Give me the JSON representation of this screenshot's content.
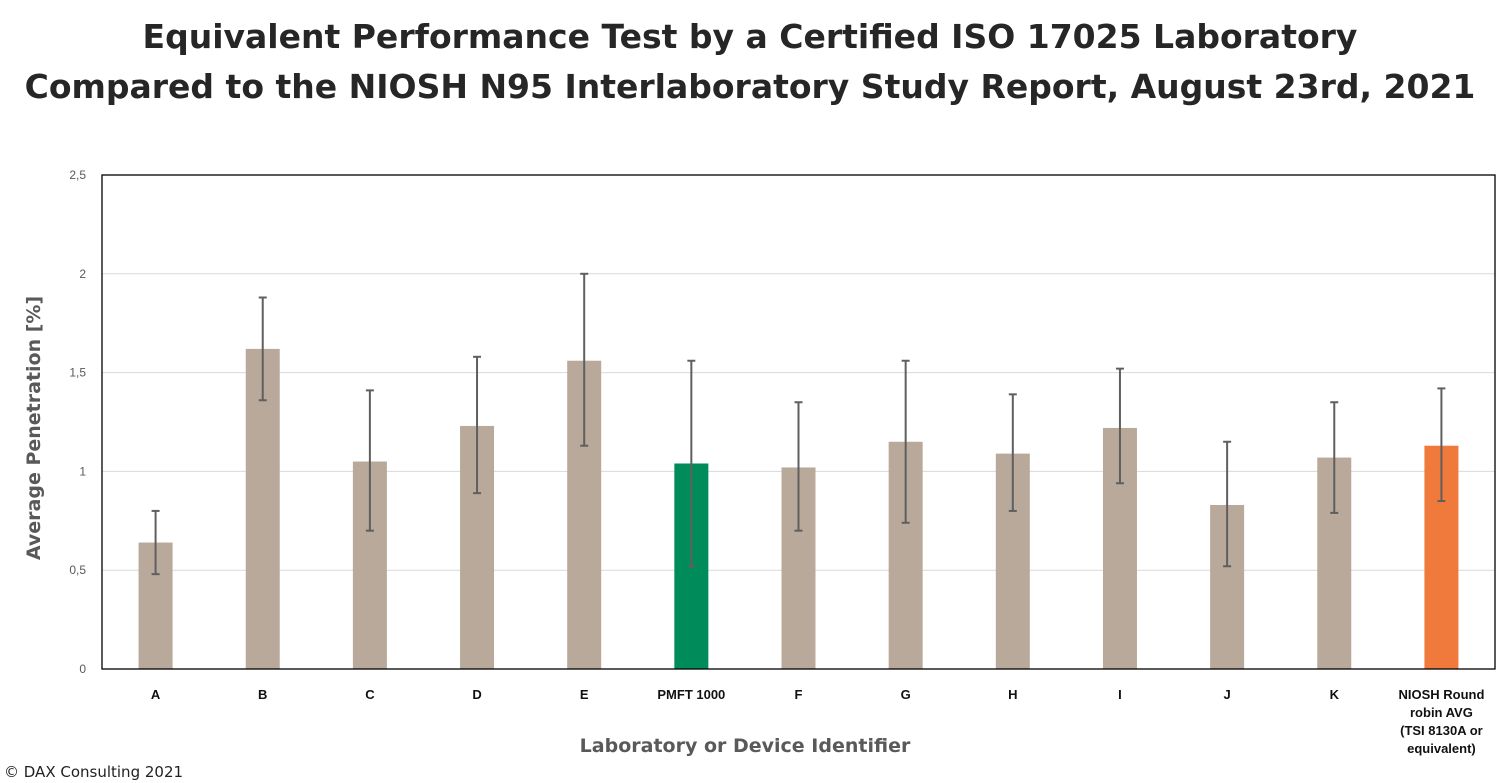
{
  "title_lines": [
    "Equivalent Performance Test by a Certified ISO 17025 Laboratory",
    "Compared to the NIOSH N95 Interlaboratory Study Report, August 23rd, 2021"
  ],
  "footer": {
    "copyright": "© DAX Consulting 2021"
  },
  "chart_data": {
    "type": "bar",
    "title": "Equivalent Performance Test by a Certified ISO 17025 Laboratory Compared to the NIOSH N95 Interlaboratory Study Report, August 23rd, 2021",
    "xlabel": "Laboratory or Device Identifier",
    "ylabel": "Average Penetration [%]",
    "ylim": [
      0,
      2.5
    ],
    "yticks": [
      0,
      0.5,
      1,
      1.5,
      2,
      2.5
    ],
    "ytick_labels": [
      "0",
      "0,5",
      "1",
      "1,5",
      "2",
      "2,5"
    ],
    "grid": true,
    "categories": [
      [
        "A"
      ],
      [
        "B"
      ],
      [
        "C"
      ],
      [
        "D"
      ],
      [
        "E"
      ],
      [
        "PMFT 1000"
      ],
      [
        "F"
      ],
      [
        "G"
      ],
      [
        "H"
      ],
      [
        "I"
      ],
      [
        "J"
      ],
      [
        "K"
      ],
      [
        "NIOSH Round",
        "robin AVG",
        "(TSI 8130A or",
        "equivalent)"
      ]
    ],
    "values": [
      0.64,
      1.62,
      1.05,
      1.23,
      1.56,
      1.04,
      1.02,
      1.15,
      1.09,
      1.22,
      0.83,
      1.07,
      1.13
    ],
    "error_low": [
      0.48,
      1.36,
      0.7,
      0.89,
      1.13,
      0.52,
      0.7,
      0.74,
      0.8,
      0.94,
      0.52,
      0.79,
      0.85
    ],
    "error_high": [
      0.8,
      1.88,
      1.41,
      1.58,
      2.0,
      1.56,
      1.35,
      1.56,
      1.39,
      1.52,
      1.15,
      1.35,
      1.42
    ],
    "colors": {
      "default": "#b8a99b",
      "highlight": "#008b5a",
      "reference": "#f07a3c",
      "error_bar": "#5f5f5f",
      "grid": "#d9d9d9",
      "axis_title": "#595959"
    },
    "bar_colors": [
      "default",
      "default",
      "default",
      "default",
      "default",
      "highlight",
      "default",
      "default",
      "default",
      "default",
      "default",
      "default",
      "reference"
    ]
  }
}
